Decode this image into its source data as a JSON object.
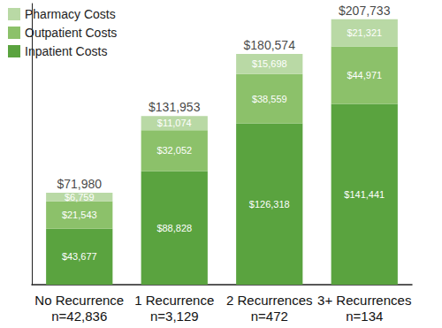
{
  "chart_data": {
    "type": "bar",
    "categories": [
      "No Recurrence\nn=42,836",
      "1 Recurrence\nn=3,129",
      "2 Recurrences\nn=472",
      "3+ Recurrences\nn=134"
    ],
    "series": [
      {
        "name": "Inpatient Costs",
        "color": "#5aa33f",
        "values": [
          43677,
          88828,
          126318,
          141441
        ],
        "value_labels": [
          "$43,677",
          "$88,828",
          "$126,318",
          "$141,441"
        ]
      },
      {
        "name": "Outpatient Costs",
        "color": "#8cc16a",
        "values": [
          21543,
          32052,
          38559,
          44971
        ],
        "value_labels": [
          "$21,543",
          "$32,052",
          "$38,559",
          "$44,971"
        ]
      },
      {
        "name": "Pharmacy Costs",
        "color": "#b9d9a5",
        "values": [
          6759,
          11074,
          15698,
          21321
        ],
        "value_labels": [
          "$6,759",
          "$11,074",
          "$15,698",
          "$21,321"
        ]
      }
    ],
    "totals": [
      71980,
      131953,
      180574,
      207733
    ],
    "total_labels": [
      "$71,980",
      "$131,953",
      "$180,574",
      "$207,733"
    ],
    "ylim": [
      0,
      220000
    ],
    "stacked": true,
    "data_labels": true,
    "tick_labels": "x",
    "grid": false,
    "legend": "top-left"
  }
}
